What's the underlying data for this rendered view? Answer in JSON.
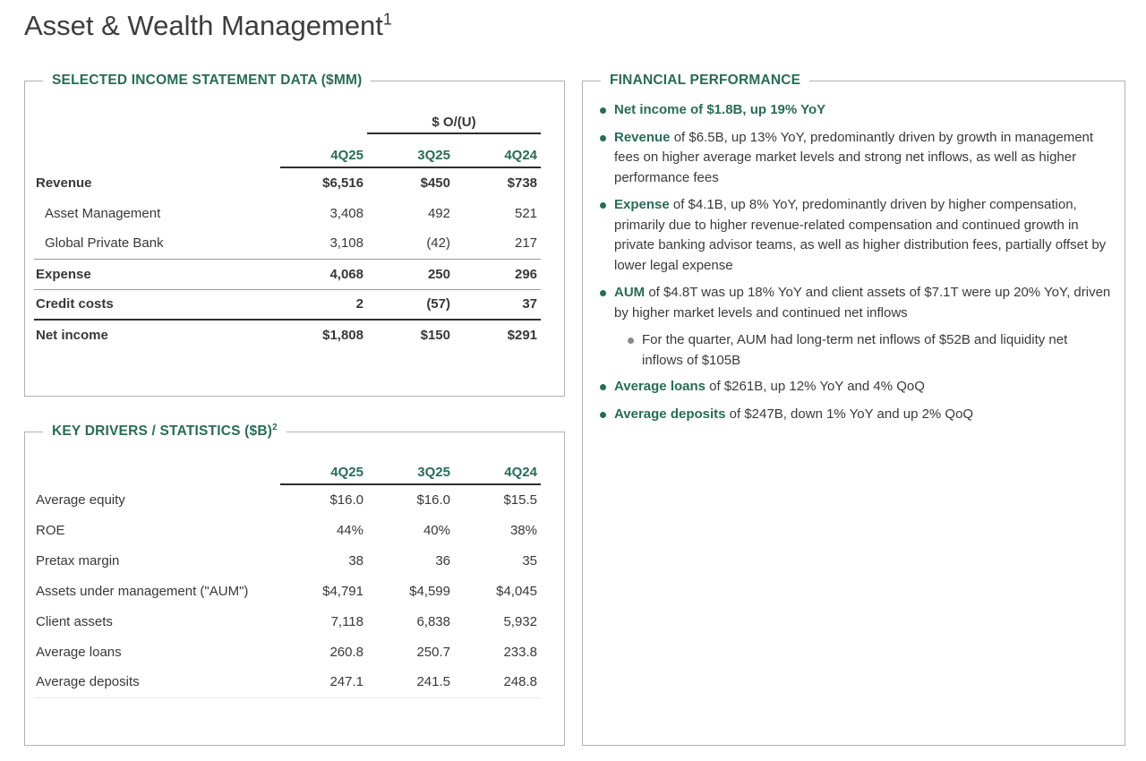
{
  "page": {
    "title": "Asset & Wealth Management",
    "title_superscript": "1"
  },
  "colors": {
    "accent_green": "#2a6b55",
    "sub_bullet_gray": "#8a8a8a"
  },
  "income_statement": {
    "section_title": "SELECTED INCOME STATEMENT DATA ($MM)",
    "spanner_label": "$ O/(U)",
    "columns": {
      "c1": "4Q25",
      "c2": "3Q25",
      "c3": "4Q24"
    },
    "rows": [
      {
        "label": "Revenue",
        "values": [
          "$6,516",
          "$450",
          "$738"
        ]
      },
      {
        "label": "Asset Management",
        "values": [
          "3,408",
          "492",
          "521"
        ]
      },
      {
        "label": "Global Private Bank",
        "values": [
          "3,108",
          "(42)",
          "217"
        ]
      },
      {
        "label": "Expense",
        "values": [
          "4,068",
          "250",
          "296"
        ]
      },
      {
        "label": "Credit costs",
        "values": [
          "2",
          "(57)",
          "37"
        ]
      },
      {
        "label": "Net income",
        "values": [
          "$1,808",
          "$150",
          "$291"
        ]
      }
    ]
  },
  "key_drivers": {
    "section_title": "KEY DRIVERS / STATISTICS ($B)",
    "section_superscript": "2",
    "columns": {
      "c1": "4Q25",
      "c2": "3Q25",
      "c3": "4Q24"
    },
    "rows": [
      {
        "label": "Average equity",
        "values": [
          "$16.0",
          "$16.0",
          "$15.5"
        ]
      },
      {
        "label": "ROE",
        "values": [
          "44%",
          "40%",
          "38%"
        ]
      },
      {
        "label": "Pretax margin",
        "values": [
          "38",
          "36",
          "35"
        ]
      },
      {
        "label": "Assets under management (\"AUM\")",
        "values": [
          "$4,791",
          "$4,599",
          "$4,045"
        ]
      },
      {
        "label": "Client assets",
        "values": [
          "7,118",
          "6,838",
          "5,932"
        ]
      },
      {
        "label": "Average loans",
        "values": [
          "260.8",
          "250.7",
          "233.8"
        ]
      },
      {
        "label": "Average deposits",
        "values": [
          "247.1",
          "241.5",
          "248.8"
        ]
      }
    ]
  },
  "financial_performance": {
    "section_title": "FINANCIAL PERFORMANCE",
    "bullets": [
      {
        "lead": "Net income of $1.8B, up 19% YoY",
        "rest": ""
      },
      {
        "lead": "Revenue",
        "rest": " of $6.5B, up 13% YoY, predominantly driven by growth in management fees on higher average market levels and strong net inflows, as well as higher performance fees"
      },
      {
        "lead": "Expense",
        "rest": " of $4.1B, up 8% YoY, predominantly driven by higher compensation, primarily due to higher revenue-related compensation and continued growth in private banking advisor teams, as well as higher distribution fees, partially offset by lower legal expense"
      },
      {
        "lead": "AUM",
        "rest": " of $4.8T was up 18% YoY and client assets of $7.1T were up 20% YoY, driven by higher market levels and continued net inflows"
      },
      {
        "lead": "",
        "rest": "For the quarter, AUM had long-term net inflows of $52B and liquidity net inflows of $105B"
      },
      {
        "lead": "Average loans",
        "rest": " of $261B, up 12% YoY and 4% QoQ"
      },
      {
        "lead": "Average deposits",
        "rest": " of $247B, down 1% YoY and up 2% QoQ"
      }
    ]
  }
}
